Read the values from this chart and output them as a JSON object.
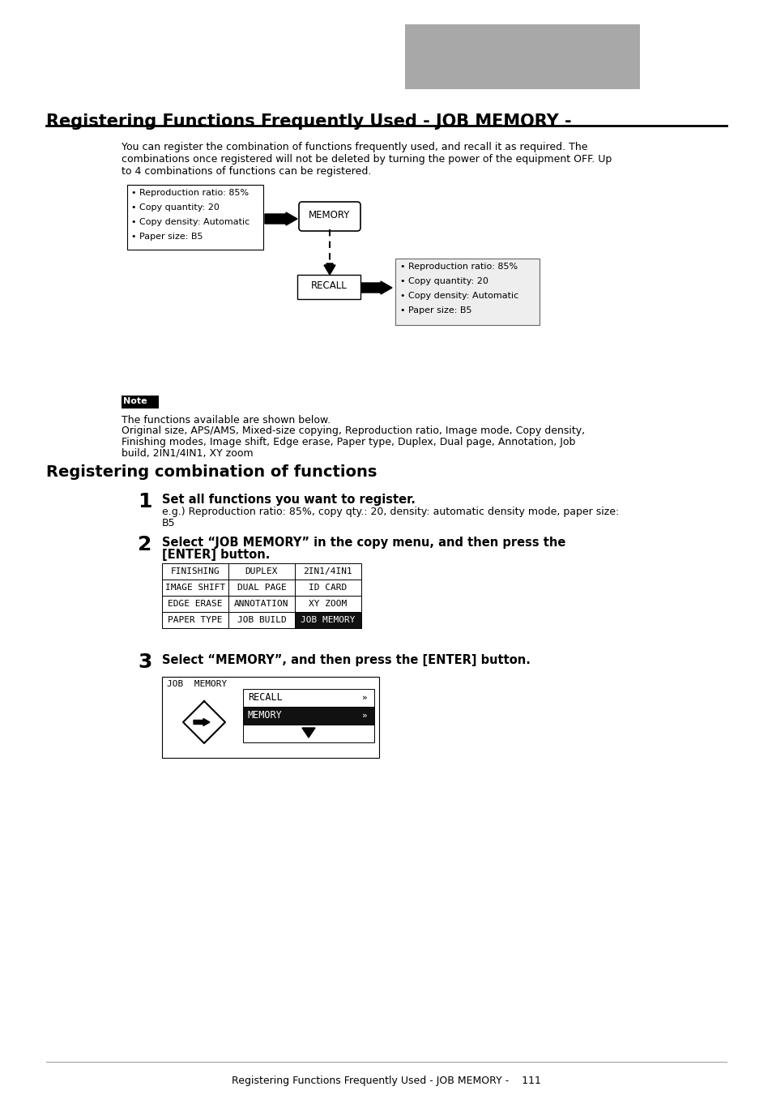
{
  "title": "Registering Functions Frequently Used - JOB MEMORY -",
  "section2_title": "Registering combination of functions",
  "bg_color": "#ffffff",
  "gray_box_color": "#aaaaaa",
  "left_box_lines": [
    "• Reproduction ratio: 85%",
    "• Copy quantity: 20",
    "• Copy density: Automatic",
    "• Paper size: B5"
  ],
  "memory_label": "MEMORY",
  "recall_label": "RECALL",
  "right_box_lines": [
    "• Reproduction ratio: 85%",
    "• Copy quantity: 20",
    "• Copy density: Automatic",
    "• Paper size: B5"
  ],
  "note_label": "Note",
  "note_text1": "The functions available are shown below.",
  "note_text2": "Original size, APS/AMS, Mixed-size copying, Reproduction ratio, Image mode, Copy density,\nFinishing modes, Image shift, Edge erase, Paper type, Duplex, Dual page, Annotation, Job\nbuild, 2IN1/4IN1, XY zoom",
  "step1_num": "1",
  "step1_bold": "Set all functions you want to register.",
  "step1_text": "e.g.) Reproduction ratio: 85%, copy qty.: 20, density: automatic density mode, paper size:\nB5",
  "step2_num": "2",
  "step2_bold_line1": "Select “JOB MEMORY” in the copy menu, and then press the",
  "step2_bold_line2": "[ENTER] button.",
  "menu_rows": [
    [
      "FINISHING",
      "DUPLEX",
      "2IN1/4IN1"
    ],
    [
      "IMAGE SHIFT",
      "DUAL PAGE",
      "ID CARD"
    ],
    [
      "EDGE ERASE",
      "ANNOTATION",
      "XY ZOOM"
    ],
    [
      "PAPER TYPE",
      "JOB BUILD",
      "JOB MEMORY"
    ]
  ],
  "menu_highlight_cell": [
    3,
    2
  ],
  "step3_num": "3",
  "step3_bold": "Select “MEMORY”, and then press the [ENTER] button.",
  "job_memory_title": "JOB  MEMORY",
  "job_memory_rows": [
    "RECALL",
    "MEMORY"
  ],
  "footer_text": "Registering Functions Frequently Used - JOB MEMORY -    111"
}
